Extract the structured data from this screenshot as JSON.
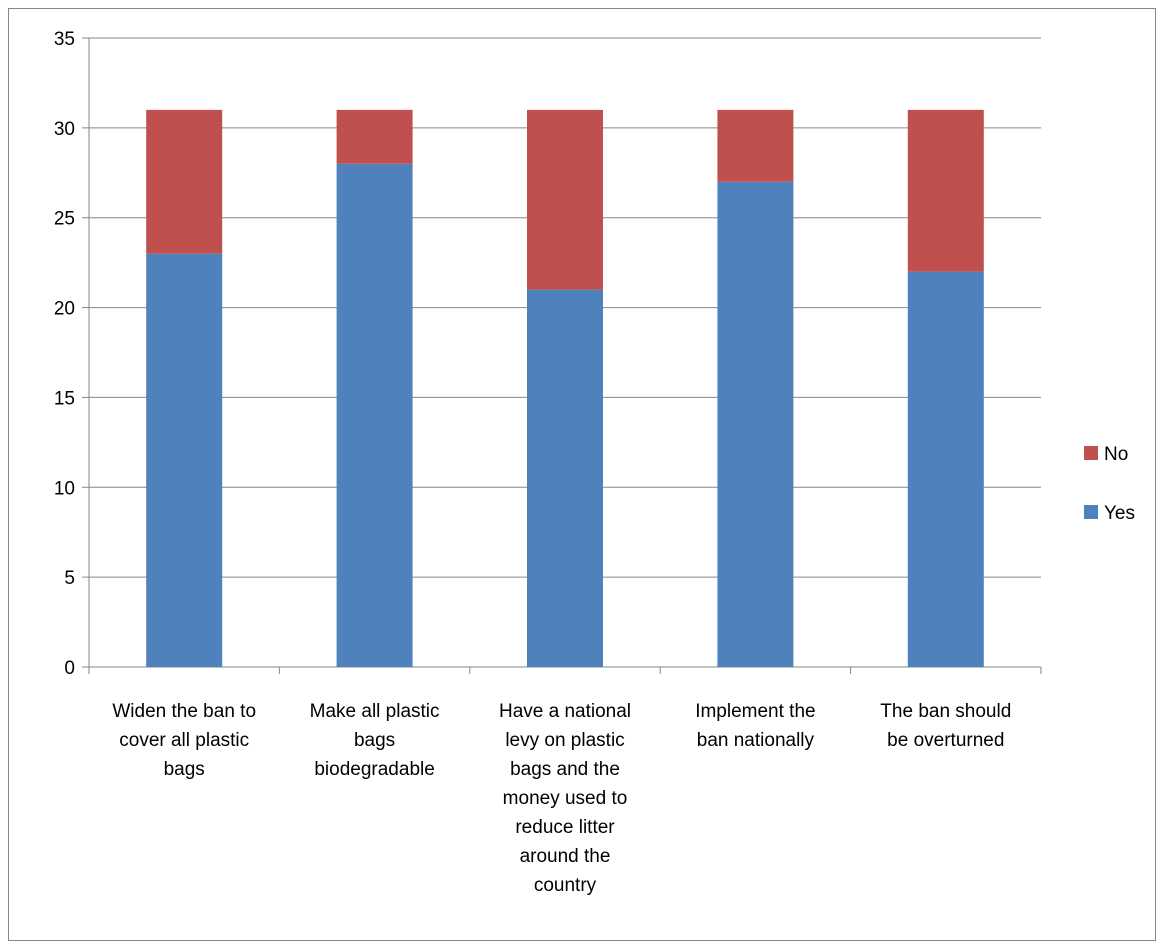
{
  "chart_data": {
    "type": "bar",
    "stacked": true,
    "title": "",
    "xlabel": "",
    "ylabel": "",
    "ylim": [
      0,
      35
    ],
    "ytick_step": 5,
    "yticks": [
      "0",
      "5",
      "10",
      "15",
      "20",
      "25",
      "30",
      "35"
    ],
    "grid": true,
    "legend_position": "right",
    "categories": [
      [
        "Widen the ban to",
        "cover all plastic",
        "bags"
      ],
      [
        "Make all plastic",
        "bags",
        "biodegradable"
      ],
      [
        "Have a national",
        "levy on plastic",
        "bags and the",
        "money used to",
        "reduce litter",
        "around the",
        "country"
      ],
      [
        "Implement the",
        "ban nationally"
      ],
      [
        "The ban should",
        "be overturned"
      ]
    ],
    "series": [
      {
        "name": "Yes",
        "color": "#4f81bd",
        "values": [
          23,
          28,
          21,
          27,
          22
        ]
      },
      {
        "name": "No",
        "color": "#c0504d",
        "values": [
          8,
          3,
          10,
          4,
          9
        ]
      }
    ],
    "legend_order": [
      "No",
      "Yes"
    ]
  }
}
